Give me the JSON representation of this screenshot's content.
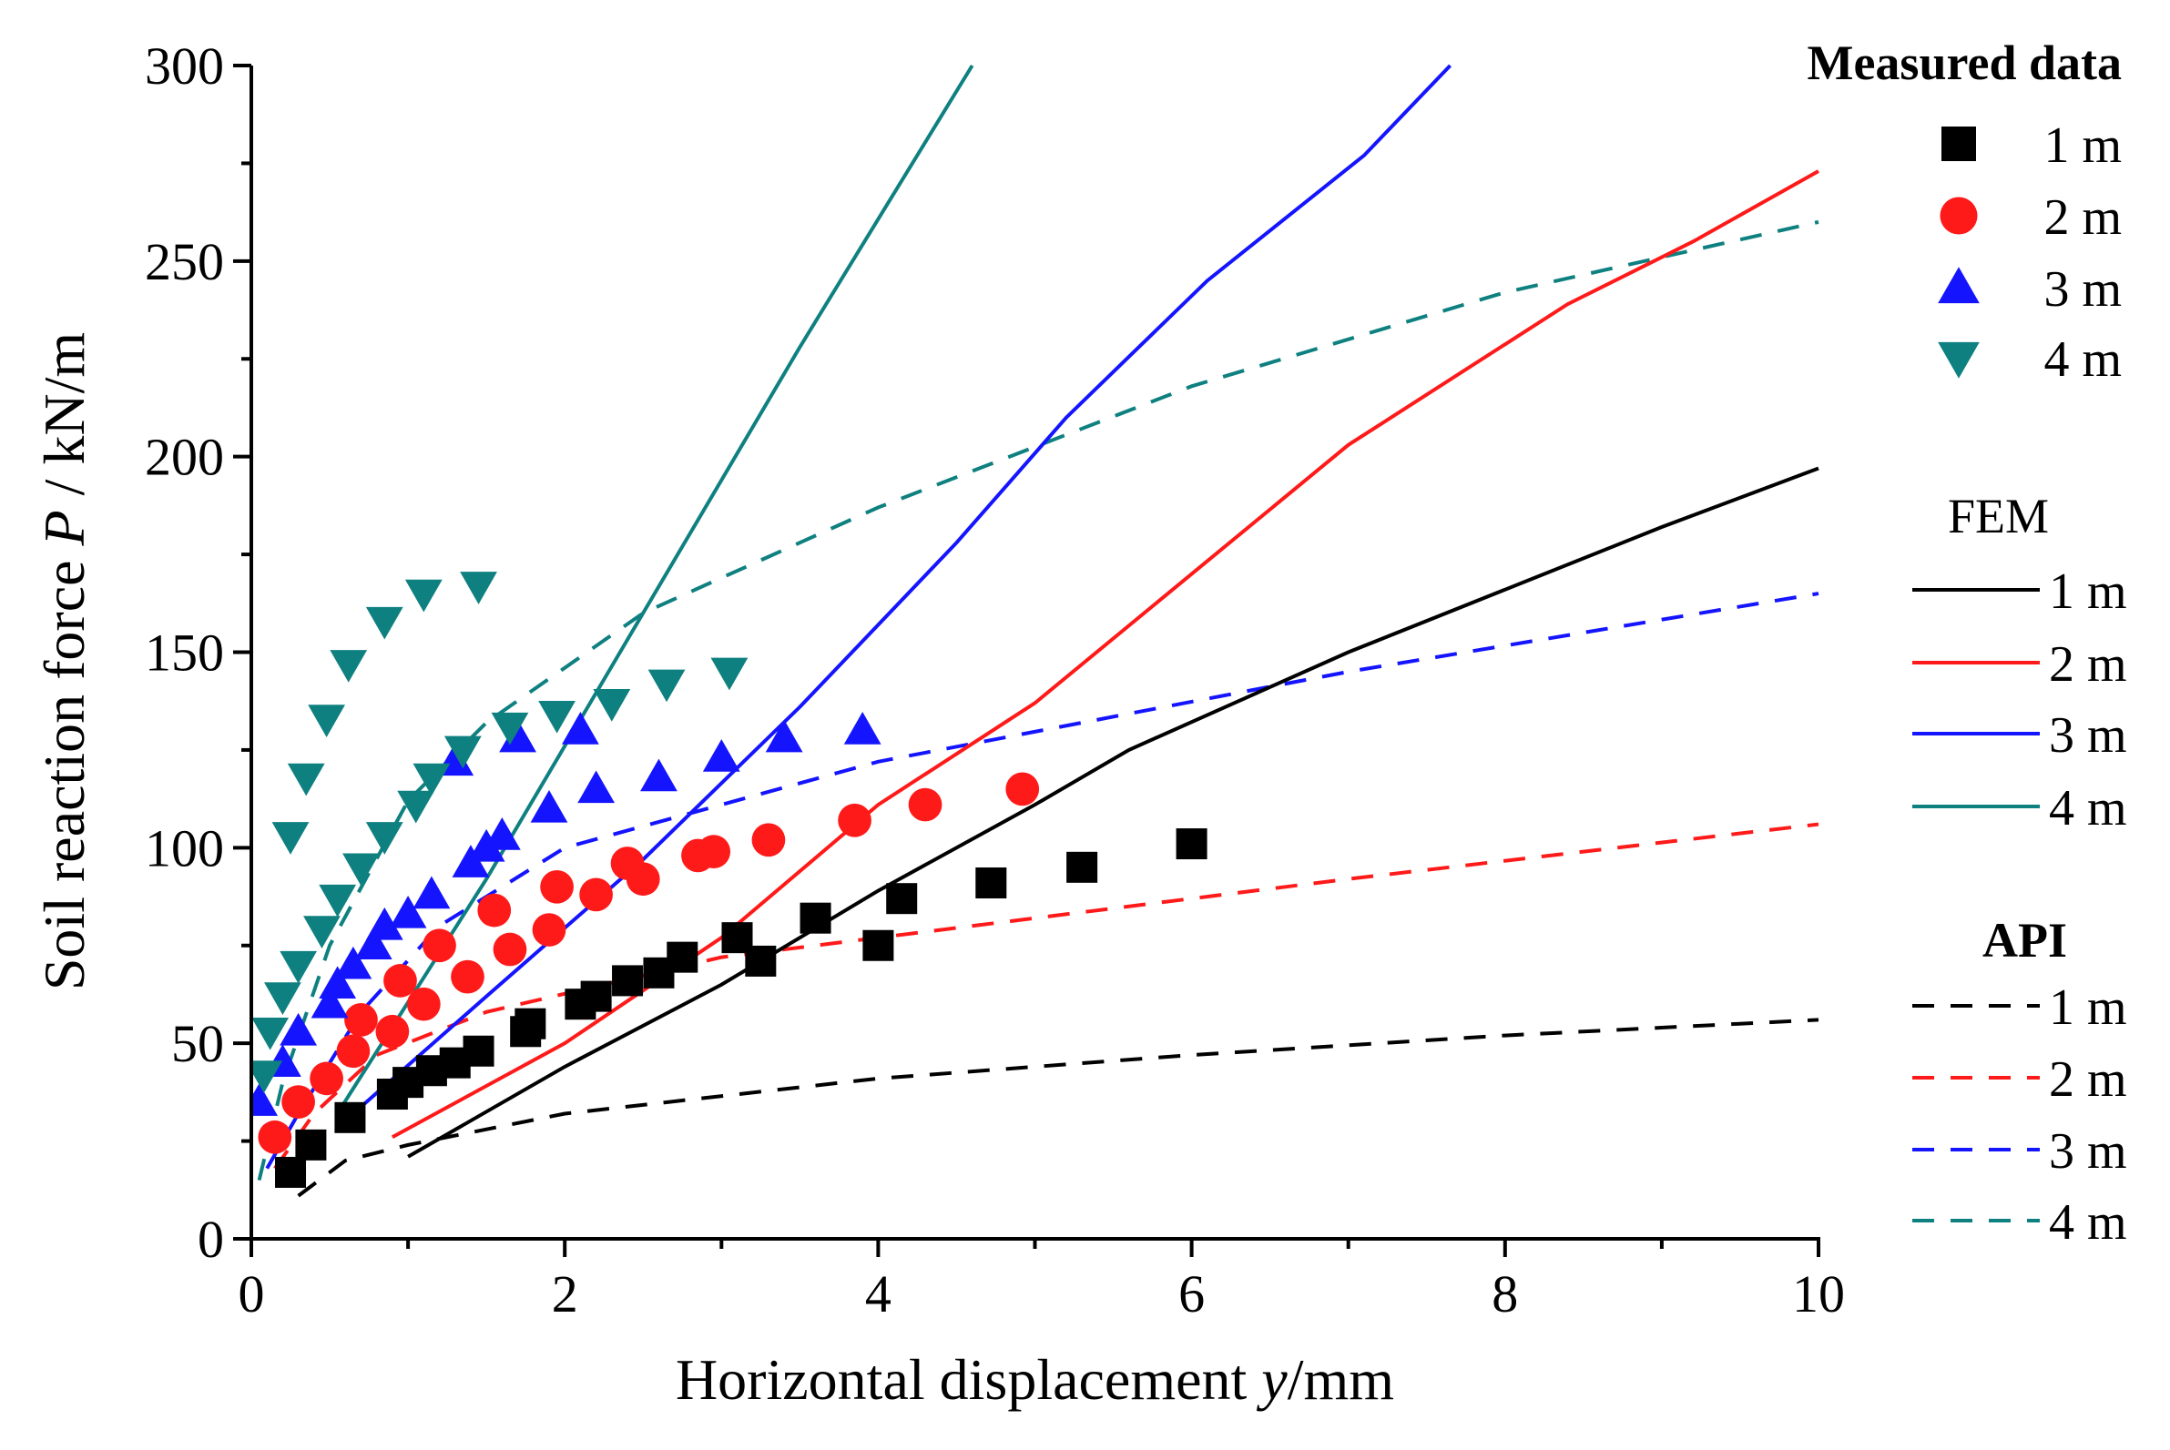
{
  "chart_data": {
    "type": "scatter",
    "xlabel_prefix": "Horizontal displacement ",
    "xlabel_var": "y",
    "xlabel_suffix": "/mm",
    "ylabel_prefix": "Soil reaction force ",
    "ylabel_var": "P",
    "ylabel_suffix": " / kN/m",
    "xlim": [
      0,
      10
    ],
    "ylim": [
      0,
      300
    ],
    "xticks": [
      0,
      2,
      4,
      6,
      8,
      10
    ],
    "yticks": [
      0,
      50,
      100,
      150,
      200,
      250,
      300
    ],
    "grid": false,
    "legend_position": "right",
    "legend_groups": [
      {
        "title": "Measured data",
        "bold": true
      },
      {
        "title": "FEM",
        "bold": false
      },
      {
        "title": "API",
        "bold": true
      }
    ],
    "colors": {
      "d1": "#000000",
      "d2": "#ff1a1a",
      "d3": "#1414ff",
      "d4": "#0f8080"
    },
    "measured": [
      {
        "name": "1 m",
        "marker": "square",
        "color": "#000000",
        "points": [
          [
            0.25,
            17
          ],
          [
            0.38,
            24
          ],
          [
            0.63,
            31
          ],
          [
            0.9,
            37
          ],
          [
            1.0,
            40
          ],
          [
            1.15,
            43
          ],
          [
            1.3,
            45
          ],
          [
            1.45,
            48
          ],
          [
            1.75,
            53
          ],
          [
            1.78,
            55
          ],
          [
            2.1,
            60
          ],
          [
            2.2,
            62
          ],
          [
            2.4,
            66
          ],
          [
            2.6,
            68
          ],
          [
            2.75,
            72
          ],
          [
            3.1,
            77
          ],
          [
            3.25,
            71
          ],
          [
            3.6,
            82
          ],
          [
            4.0,
            75
          ],
          [
            4.15,
            87
          ],
          [
            4.72,
            91
          ],
          [
            5.3,
            95
          ],
          [
            6.0,
            101
          ]
        ]
      },
      {
        "name": "2 m",
        "marker": "circle",
        "color": "#ff1a1a",
        "points": [
          [
            0.15,
            26
          ],
          [
            0.3,
            35
          ],
          [
            0.48,
            41
          ],
          [
            0.65,
            48
          ],
          [
            0.7,
            56
          ],
          [
            0.9,
            53
          ],
          [
            0.95,
            66
          ],
          [
            1.1,
            60
          ],
          [
            1.2,
            75
          ],
          [
            1.38,
            67
          ],
          [
            1.55,
            84
          ],
          [
            1.65,
            74
          ],
          [
            1.9,
            79
          ],
          [
            1.95,
            90
          ],
          [
            2.2,
            88
          ],
          [
            2.4,
            96
          ],
          [
            2.5,
            92
          ],
          [
            2.85,
            98
          ],
          [
            2.95,
            99
          ],
          [
            3.3,
            102
          ],
          [
            3.85,
            107
          ],
          [
            4.3,
            111
          ],
          [
            4.92,
            115
          ]
        ]
      },
      {
        "name": "3 m",
        "marker": "triangle-up",
        "color": "#1414ff",
        "points": [
          [
            0.05,
            35
          ],
          [
            0.2,
            45
          ],
          [
            0.3,
            53
          ],
          [
            0.5,
            60
          ],
          [
            0.55,
            65
          ],
          [
            0.65,
            70
          ],
          [
            0.78,
            75
          ],
          [
            0.85,
            80
          ],
          [
            1.0,
            83
          ],
          [
            1.15,
            88
          ],
          [
            1.4,
            96
          ],
          [
            1.5,
            100
          ],
          [
            1.6,
            103
          ],
          [
            1.9,
            110
          ],
          [
            2.2,
            115
          ],
          [
            2.1,
            130
          ],
          [
            2.6,
            118
          ],
          [
            3.0,
            123
          ],
          [
            3.4,
            128
          ],
          [
            3.9,
            130
          ],
          [
            1.7,
            128
          ],
          [
            1.3,
            122
          ]
        ]
      },
      {
        "name": "4 m",
        "marker": "triangle-down",
        "color": "#0f8080",
        "points": [
          [
            0.08,
            42
          ],
          [
            0.12,
            53
          ],
          [
            0.2,
            62
          ],
          [
            0.3,
            70
          ],
          [
            0.45,
            79
          ],
          [
            0.55,
            87
          ],
          [
            0.7,
            95
          ],
          [
            0.85,
            103
          ],
          [
            1.05,
            111
          ],
          [
            1.15,
            118
          ],
          [
            1.35,
            125
          ],
          [
            1.65,
            131
          ],
          [
            1.95,
            134
          ],
          [
            2.3,
            137
          ],
          [
            2.65,
            142
          ],
          [
            3.05,
            145
          ],
          [
            0.25,
            103
          ],
          [
            0.35,
            118
          ],
          [
            0.48,
            133
          ],
          [
            0.62,
            147
          ],
          [
            0.85,
            158
          ],
          [
            1.1,
            165
          ],
          [
            1.45,
            167
          ]
        ]
      }
    ],
    "fem": [
      {
        "name": "1 m",
        "color": "#000000",
        "points": [
          [
            1.0,
            21
          ],
          [
            2.0,
            44
          ],
          [
            3.0,
            65
          ],
          [
            4.0,
            89
          ],
          [
            5.0,
            111
          ],
          [
            5.6,
            125
          ],
          [
            7.0,
            150
          ],
          [
            9.0,
            182
          ],
          [
            10.0,
            197
          ]
        ]
      },
      {
        "name": "2 m",
        "color": "#ff1a1a",
        "points": [
          [
            0.9,
            26
          ],
          [
            2.0,
            50
          ],
          [
            3.0,
            77
          ],
          [
            4.0,
            111
          ],
          [
            5.0,
            137
          ],
          [
            6.0,
            170
          ],
          [
            7.0,
            203
          ],
          [
            8.4,
            239
          ],
          [
            9.2,
            255
          ],
          [
            10.0,
            273
          ]
        ]
      },
      {
        "name": "3 m",
        "color": "#1414ff",
        "points": [
          [
            0.65,
            32
          ],
          [
            1.5,
            62
          ],
          [
            2.5,
            97
          ],
          [
            3.5,
            136
          ],
          [
            4.5,
            178
          ],
          [
            5.2,
            210
          ],
          [
            6.1,
            245
          ],
          [
            7.1,
            277
          ],
          [
            7.65,
            300
          ]
        ]
      },
      {
        "name": "4 m",
        "color": "#0f8080",
        "points": [
          [
            0.58,
            34
          ],
          [
            1.5,
            92
          ],
          [
            2.5,
            160
          ],
          [
            3.5,
            228
          ],
          [
            4.6,
            300
          ]
        ]
      }
    ],
    "api": [
      {
        "name": "1 m",
        "color": "#000000",
        "points": [
          [
            0.3,
            11
          ],
          [
            0.6,
            20
          ],
          [
            1.0,
            24
          ],
          [
            2.0,
            32
          ],
          [
            4.0,
            41
          ],
          [
            6.0,
            47
          ],
          [
            8.0,
            52
          ],
          [
            10.0,
            56
          ]
        ]
      },
      {
        "name": "2 m",
        "color": "#ff1a1a",
        "points": [
          [
            0.15,
            18
          ],
          [
            0.4,
            32
          ],
          [
            0.8,
            47
          ],
          [
            1.5,
            58
          ],
          [
            3.0,
            72
          ],
          [
            5.0,
            82
          ],
          [
            7.0,
            92
          ],
          [
            10.0,
            106
          ]
        ]
      },
      {
        "name": "3 m",
        "color": "#1414ff",
        "points": [
          [
            0.1,
            18
          ],
          [
            0.3,
            32
          ],
          [
            0.7,
            58
          ],
          [
            1.2,
            80
          ],
          [
            2.0,
            100
          ],
          [
            4.0,
            122
          ],
          [
            7.0,
            145
          ],
          [
            10.0,
            165
          ]
        ]
      },
      {
        "name": "4 m",
        "color": "#0f8080",
        "points": [
          [
            0.05,
            15
          ],
          [
            0.2,
            40
          ],
          [
            0.5,
            75
          ],
          [
            1.0,
            112
          ],
          [
            1.5,
            132
          ],
          [
            2.5,
            160
          ],
          [
            4.0,
            187
          ],
          [
            6.0,
            218
          ],
          [
            8.0,
            242
          ],
          [
            10.0,
            260
          ]
        ]
      }
    ]
  }
}
